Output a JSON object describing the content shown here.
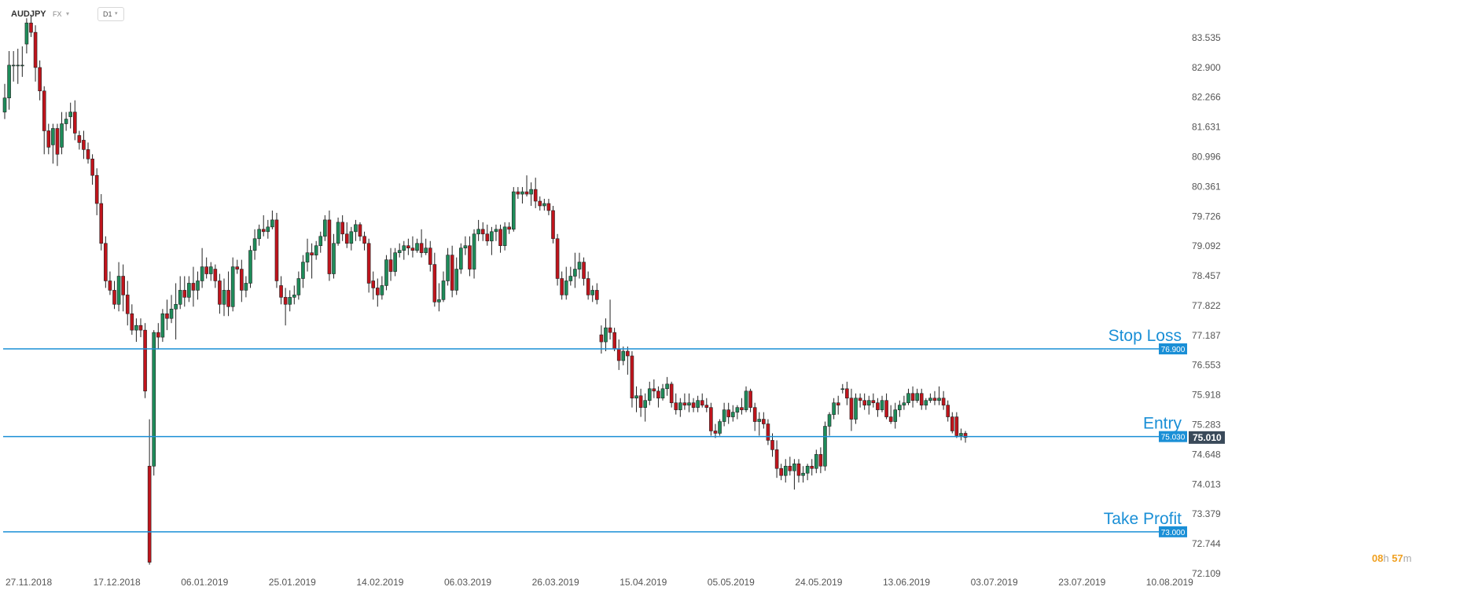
{
  "toolbar": {
    "symbol": "AUDJPY",
    "market": "FX",
    "timeframe": "D1"
  },
  "colors": {
    "up": "#1e8c5a",
    "down": "#c0141c",
    "level": "#1a8fd6",
    "current": "#3a4a5a"
  },
  "countdown": {
    "hours": "08",
    "h": "h",
    "minutes": "57",
    "m": "m"
  },
  "chart_data": {
    "type": "candlestick",
    "symbol": "AUDJPY",
    "timeframe": "D1",
    "ylim": [
      72.109,
      84.17
    ],
    "y_ticks": [
      "83.535",
      "82.900",
      "82.266",
      "81.631",
      "80.996",
      "80.361",
      "79.726",
      "79.092",
      "78.457",
      "77.822",
      "77.187",
      "76.553",
      "75.918",
      "75.283",
      "74.648",
      "74.013",
      "73.379",
      "72.744",
      "72.109"
    ],
    "x_ticks": [
      {
        "label": "27.11.2018",
        "bar": 0
      },
      {
        "label": "17.12.2018",
        "bar": 20
      },
      {
        "label": "06.01.2019",
        "bar": 40
      },
      {
        "label": "25.01.2019",
        "bar": 60
      },
      {
        "label": "14.02.2019",
        "bar": 80
      },
      {
        "label": "06.03.2019",
        "bar": 100
      },
      {
        "label": "26.03.2019",
        "bar": 120
      },
      {
        "label": "15.04.2019",
        "bar": 140
      },
      {
        "label": "05.05.2019",
        "bar": 160
      },
      {
        "label": "24.05.2019",
        "bar": 180
      },
      {
        "label": "13.06.2019",
        "bar": 200
      },
      {
        "label": "03.07.2019",
        "bar": 220
      },
      {
        "label": "23.07.2019",
        "bar": 240
      },
      {
        "label": "10.08.2019",
        "bar": 260
      }
    ],
    "current_price": "75.010",
    "current_value": 75.01,
    "levels": [
      {
        "name": "Stop Loss",
        "value": 76.9,
        "tag": "76.900"
      },
      {
        "name": "Entry",
        "value": 75.03,
        "tag": "75.030"
      },
      {
        "name": "Take Profit",
        "value": 73.0,
        "tag": "73.000"
      }
    ],
    "candles": [
      [
        81.95,
        82.55,
        81.8,
        82.25
      ],
      [
        82.25,
        83.25,
        82.0,
        82.95
      ],
      [
        82.95,
        83.25,
        82.6,
        82.95
      ],
      [
        82.95,
        83.3,
        82.55,
        82.95
      ],
      [
        82.95,
        83.35,
        82.7,
        82.95
      ],
      [
        83.4,
        83.95,
        83.2,
        83.85
      ],
      [
        83.85,
        84.0,
        83.55,
        83.65
      ],
      [
        83.65,
        83.8,
        82.6,
        82.9
      ],
      [
        82.9,
        83.05,
        82.2,
        82.4
      ],
      [
        82.4,
        82.5,
        81.05,
        81.55
      ],
      [
        81.55,
        81.7,
        81.05,
        81.2
      ],
      [
        81.25,
        81.7,
        80.85,
        81.6
      ],
      [
        81.6,
        81.7,
        80.8,
        81.05
      ],
      [
        81.2,
        81.95,
        81.05,
        81.7
      ],
      [
        81.7,
        81.95,
        81.55,
        81.8
      ],
      [
        81.85,
        82.15,
        81.6,
        81.95
      ],
      [
        81.95,
        82.2,
        81.35,
        81.5
      ],
      [
        81.45,
        81.55,
        81.15,
        81.3
      ],
      [
        81.35,
        81.55,
        80.95,
        81.15
      ],
      [
        81.15,
        81.3,
        80.85,
        80.95
      ],
      [
        80.95,
        81.05,
        80.4,
        80.6
      ],
      [
        80.6,
        80.75,
        79.75,
        80.0
      ],
      [
        80.0,
        80.2,
        79.0,
        79.15
      ],
      [
        79.15,
        79.3,
        78.2,
        78.35
      ],
      [
        78.35,
        78.55,
        78.05,
        78.15
      ],
      [
        78.15,
        78.35,
        77.75,
        77.85
      ],
      [
        77.85,
        78.75,
        77.7,
        78.45
      ],
      [
        78.45,
        78.7,
        77.7,
        78.05
      ],
      [
        78.05,
        78.35,
        77.4,
        77.65
      ],
      [
        77.65,
        77.85,
        77.2,
        77.3
      ],
      [
        77.3,
        77.55,
        77.05,
        77.4
      ],
      [
        77.4,
        77.55,
        77.15,
        77.3
      ],
      [
        77.3,
        77.45,
        75.85,
        76.0
      ],
      [
        74.4,
        75.4,
        72.3,
        72.35
      ],
      [
        74.4,
        77.3,
        74.2,
        77.25
      ],
      [
        77.25,
        77.45,
        76.9,
        77.15
      ],
      [
        77.15,
        77.75,
        77.05,
        77.65
      ],
      [
        77.65,
        77.95,
        77.3,
        77.55
      ],
      [
        77.55,
        78.05,
        77.45,
        77.75
      ],
      [
        77.75,
        78.3,
        77.1,
        77.85
      ],
      [
        77.85,
        78.45,
        77.75,
        78.15
      ],
      [
        78.15,
        78.45,
        77.8,
        78.0
      ],
      [
        78.0,
        78.45,
        77.9,
        78.3
      ],
      [
        78.3,
        78.65,
        77.8,
        78.15
      ],
      [
        78.15,
        78.55,
        77.95,
        78.35
      ],
      [
        78.35,
        79.05,
        78.2,
        78.65
      ],
      [
        78.65,
        78.85,
        78.4,
        78.5
      ],
      [
        78.5,
        78.75,
        78.35,
        78.65
      ],
      [
        78.6,
        78.7,
        78.2,
        78.35
      ],
      [
        78.35,
        78.5,
        77.65,
        77.85
      ],
      [
        77.85,
        78.4,
        77.6,
        78.15
      ],
      [
        78.15,
        78.55,
        77.6,
        77.8
      ],
      [
        77.8,
        78.85,
        77.7,
        78.65
      ],
      [
        78.65,
        78.8,
        78.5,
        78.6
      ],
      [
        78.6,
        78.8,
        77.9,
        78.15
      ],
      [
        78.15,
        78.45,
        78.0,
        78.3
      ],
      [
        78.3,
        79.1,
        78.2,
        79.0
      ],
      [
        79.0,
        79.45,
        78.8,
        79.25
      ],
      [
        79.25,
        79.55,
        79.1,
        79.45
      ],
      [
        79.45,
        79.75,
        79.3,
        79.4
      ],
      [
        79.4,
        79.65,
        79.25,
        79.5
      ],
      [
        79.5,
        79.85,
        79.45,
        79.65
      ],
      [
        79.65,
        79.8,
        78.2,
        78.35
      ],
      [
        78.25,
        78.45,
        77.85,
        78.0
      ],
      [
        78.0,
        78.2,
        77.4,
        77.85
      ],
      [
        77.85,
        78.15,
        77.7,
        78.0
      ],
      [
        78.0,
        78.25,
        77.85,
        78.05
      ],
      [
        78.05,
        78.55,
        77.95,
        78.4
      ],
      [
        78.4,
        78.9,
        78.2,
        78.75
      ],
      [
        78.75,
        79.25,
        78.55,
        78.95
      ],
      [
        78.95,
        79.15,
        78.4,
        78.9
      ],
      [
        78.9,
        79.2,
        78.8,
        79.1
      ],
      [
        79.1,
        79.4,
        78.95,
        79.3
      ],
      [
        79.3,
        79.75,
        79.2,
        79.65
      ],
      [
        79.65,
        79.85,
        78.35,
        78.5
      ],
      [
        78.5,
        79.35,
        78.4,
        79.15
      ],
      [
        79.15,
        79.7,
        79.1,
        79.6
      ],
      [
        79.6,
        79.75,
        79.2,
        79.35
      ],
      [
        79.35,
        79.6,
        79.05,
        79.15
      ],
      [
        79.15,
        79.5,
        79.0,
        79.4
      ],
      [
        79.4,
        79.65,
        79.2,
        79.55
      ],
      [
        79.55,
        79.6,
        79.2,
        79.3
      ],
      [
        79.3,
        79.4,
        79.0,
        79.15
      ],
      [
        79.15,
        79.25,
        78.1,
        78.3
      ],
      [
        78.35,
        78.55,
        77.95,
        78.2
      ],
      [
        78.2,
        78.4,
        77.8,
        78.05
      ],
      [
        78.05,
        78.45,
        77.95,
        78.25
      ],
      [
        78.25,
        78.9,
        78.15,
        78.8
      ],
      [
        78.8,
        79.05,
        78.35,
        78.55
      ],
      [
        78.55,
        79.05,
        78.45,
        78.95
      ],
      [
        78.95,
        79.15,
        78.85,
        79.0
      ],
      [
        79.0,
        79.2,
        78.8,
        79.1
      ],
      [
        79.1,
        79.25,
        78.9,
        79.05
      ],
      [
        79.05,
        79.3,
        78.85,
        79.0
      ],
      [
        79.0,
        79.25,
        78.95,
        79.15
      ],
      [
        79.15,
        79.45,
        78.85,
        78.95
      ],
      [
        78.95,
        79.25,
        78.9,
        79.05
      ],
      [
        79.05,
        79.2,
        78.55,
        78.7
      ],
      [
        78.7,
        78.95,
        77.8,
        77.9
      ],
      [
        77.9,
        78.3,
        77.7,
        77.95
      ],
      [
        77.95,
        78.55,
        77.9,
        78.35
      ],
      [
        78.35,
        79.05,
        78.25,
        78.9
      ],
      [
        78.9,
        79.1,
        78.0,
        78.15
      ],
      [
        78.15,
        78.85,
        78.05,
        78.6
      ],
      [
        78.6,
        79.15,
        78.5,
        79.05
      ],
      [
        79.05,
        79.3,
        78.9,
        79.1
      ],
      [
        79.1,
        79.3,
        78.45,
        78.6
      ],
      [
        78.6,
        79.45,
        78.4,
        79.35
      ],
      [
        79.35,
        79.65,
        79.2,
        79.45
      ],
      [
        79.45,
        79.6,
        79.2,
        79.35
      ],
      [
        79.35,
        79.55,
        79.1,
        79.2
      ],
      [
        79.2,
        79.5,
        78.9,
        79.4
      ],
      [
        79.4,
        79.55,
        79.2,
        79.45
      ],
      [
        79.45,
        79.55,
        78.95,
        79.1
      ],
      [
        79.1,
        79.6,
        79.0,
        79.5
      ],
      [
        79.5,
        79.6,
        79.35,
        79.45
      ],
      [
        79.45,
        80.35,
        79.4,
        80.25
      ],
      [
        80.25,
        80.35,
        80.1,
        80.2
      ],
      [
        80.2,
        80.35,
        80.0,
        80.25
      ],
      [
        80.25,
        80.6,
        80.15,
        80.2
      ],
      [
        80.2,
        80.45,
        79.95,
        80.3
      ],
      [
        80.3,
        80.55,
        79.9,
        80.05
      ],
      [
        80.05,
        80.15,
        79.85,
        79.95
      ],
      [
        79.95,
        80.1,
        79.85,
        80.0
      ],
      [
        80.0,
        80.1,
        79.75,
        79.85
      ],
      [
        79.85,
        79.95,
        79.15,
        79.25
      ],
      [
        79.25,
        79.35,
        78.25,
        78.4
      ],
      [
        78.4,
        78.55,
        77.95,
        78.05
      ],
      [
        78.05,
        78.65,
        77.95,
        78.35
      ],
      [
        78.35,
        78.65,
        78.25,
        78.45
      ],
      [
        78.45,
        78.95,
        78.2,
        78.6
      ],
      [
        78.6,
        78.95,
        78.4,
        78.75
      ],
      [
        78.75,
        78.85,
        78.25,
        78.4
      ],
      [
        78.4,
        78.55,
        77.95,
        78.05
      ],
      [
        78.05,
        78.25,
        77.9,
        78.15
      ],
      [
        78.15,
        78.3,
        77.85,
        77.95
      ],
      [
        77.2,
        77.4,
        76.8,
        77.05
      ],
      [
        77.05,
        77.55,
        76.85,
        77.35
      ],
      [
        77.35,
        77.95,
        77.1,
        77.25
      ],
      [
        77.25,
        77.35,
        76.85,
        76.9
      ],
      [
        76.9,
        77.1,
        76.45,
        76.65
      ],
      [
        76.65,
        76.95,
        76.55,
        76.85
      ],
      [
        76.85,
        76.95,
        76.35,
        76.75
      ],
      [
        76.75,
        76.85,
        75.65,
        75.85
      ],
      [
        75.85,
        76.1,
        75.55,
        75.9
      ],
      [
        75.9,
        76.05,
        75.45,
        75.65
      ],
      [
        75.65,
        75.95,
        75.35,
        75.8
      ],
      [
        75.8,
        76.2,
        75.7,
        76.05
      ],
      [
        76.05,
        76.25,
        75.85,
        76.0
      ],
      [
        76.0,
        76.1,
        75.65,
        75.85
      ],
      [
        75.85,
        76.15,
        75.8,
        76.05
      ],
      [
        76.05,
        76.3,
        75.9,
        76.15
      ],
      [
        76.15,
        76.2,
        75.65,
        75.75
      ],
      [
        75.75,
        75.95,
        75.5,
        75.6
      ],
      [
        75.6,
        75.85,
        75.45,
        75.75
      ],
      [
        75.75,
        75.95,
        75.6,
        75.7
      ],
      [
        75.7,
        75.95,
        75.55,
        75.75
      ],
      [
        75.75,
        75.85,
        75.55,
        75.65
      ],
      [
        75.65,
        75.9,
        75.55,
        75.8
      ],
      [
        75.8,
        75.95,
        75.65,
        75.7
      ],
      [
        75.7,
        75.85,
        75.55,
        75.65
      ],
      [
        75.65,
        75.75,
        75.05,
        75.15
      ],
      [
        75.15,
        75.3,
        75.0,
        75.1
      ],
      [
        75.1,
        75.4,
        75.05,
        75.35
      ],
      [
        75.35,
        75.75,
        75.25,
        75.6
      ],
      [
        75.6,
        75.75,
        75.3,
        75.45
      ],
      [
        75.45,
        75.7,
        75.35,
        75.55
      ],
      [
        75.55,
        75.7,
        75.4,
        75.65
      ],
      [
        75.65,
        75.85,
        75.5,
        75.6
      ],
      [
        75.6,
        76.1,
        75.55,
        76.0
      ],
      [
        76.0,
        76.05,
        75.55,
        75.65
      ],
      [
        75.65,
        75.75,
        75.15,
        75.35
      ],
      [
        75.35,
        75.55,
        75.05,
        75.4
      ],
      [
        75.4,
        75.55,
        75.2,
        75.3
      ],
      [
        75.3,
        75.4,
        74.85,
        74.95
      ],
      [
        74.95,
        75.1,
        74.6,
        74.75
      ],
      [
        74.75,
        74.95,
        74.15,
        74.35
      ],
      [
        74.35,
        74.45,
        74.1,
        74.2
      ],
      [
        74.2,
        74.55,
        74.05,
        74.4
      ],
      [
        74.4,
        74.6,
        74.2,
        74.3
      ],
      [
        74.3,
        74.55,
        73.9,
        74.45
      ],
      [
        74.45,
        74.55,
        74.05,
        74.2
      ],
      [
        74.2,
        74.4,
        74.05,
        74.25
      ],
      [
        74.25,
        74.45,
        74.1,
        74.4
      ],
      [
        74.4,
        74.55,
        74.2,
        74.35
      ],
      [
        74.35,
        74.75,
        74.25,
        74.65
      ],
      [
        74.65,
        74.8,
        74.25,
        74.4
      ],
      [
        74.4,
        75.35,
        74.3,
        75.25
      ],
      [
        75.25,
        75.55,
        75.05,
        75.5
      ],
      [
        75.5,
        75.85,
        75.4,
        75.75
      ],
      [
        75.75,
        75.9,
        75.5,
        75.7
      ],
      [
        76.05,
        76.15,
        75.95,
        76.05
      ],
      [
        76.05,
        76.2,
        75.7,
        75.85
      ],
      [
        75.85,
        76.05,
        75.15,
        75.4
      ],
      [
        75.4,
        75.95,
        75.3,
        75.85
      ],
      [
        75.85,
        75.95,
        75.65,
        75.8
      ],
      [
        75.8,
        75.95,
        75.6,
        75.7
      ],
      [
        75.7,
        75.9,
        75.5,
        75.8
      ],
      [
        75.8,
        75.95,
        75.65,
        75.75
      ],
      [
        75.75,
        75.85,
        75.45,
        75.6
      ],
      [
        75.6,
        75.9,
        75.55,
        75.8
      ],
      [
        75.8,
        75.95,
        75.4,
        75.45
      ],
      [
        75.45,
        75.7,
        75.3,
        75.35
      ],
      [
        75.35,
        75.75,
        75.2,
        75.6
      ],
      [
        75.6,
        75.8,
        75.45,
        75.7
      ],
      [
        75.7,
        75.9,
        75.6,
        75.75
      ],
      [
        75.75,
        76.05,
        75.7,
        75.95
      ],
      [
        75.95,
        76.1,
        75.65,
        75.8
      ],
      [
        75.8,
        76.05,
        75.75,
        75.95
      ],
      [
        75.95,
        76.05,
        75.6,
        75.7
      ],
      [
        75.7,
        75.85,
        75.6,
        75.8
      ],
      [
        75.8,
        75.95,
        75.75,
        75.85
      ],
      [
        75.85,
        76.0,
        75.7,
        75.8
      ],
      [
        75.8,
        76.1,
        75.7,
        75.85
      ],
      [
        75.85,
        76.0,
        75.6,
        75.7
      ],
      [
        75.7,
        75.8,
        75.35,
        75.45
      ],
      [
        75.45,
        75.55,
        75.1,
        75.15
      ],
      [
        75.45,
        75.55,
        75.0,
        75.05
      ],
      [
        75.05,
        75.2,
        74.95,
        75.1
      ],
      [
        75.1,
        75.15,
        74.9,
        75.01
      ]
    ]
  }
}
